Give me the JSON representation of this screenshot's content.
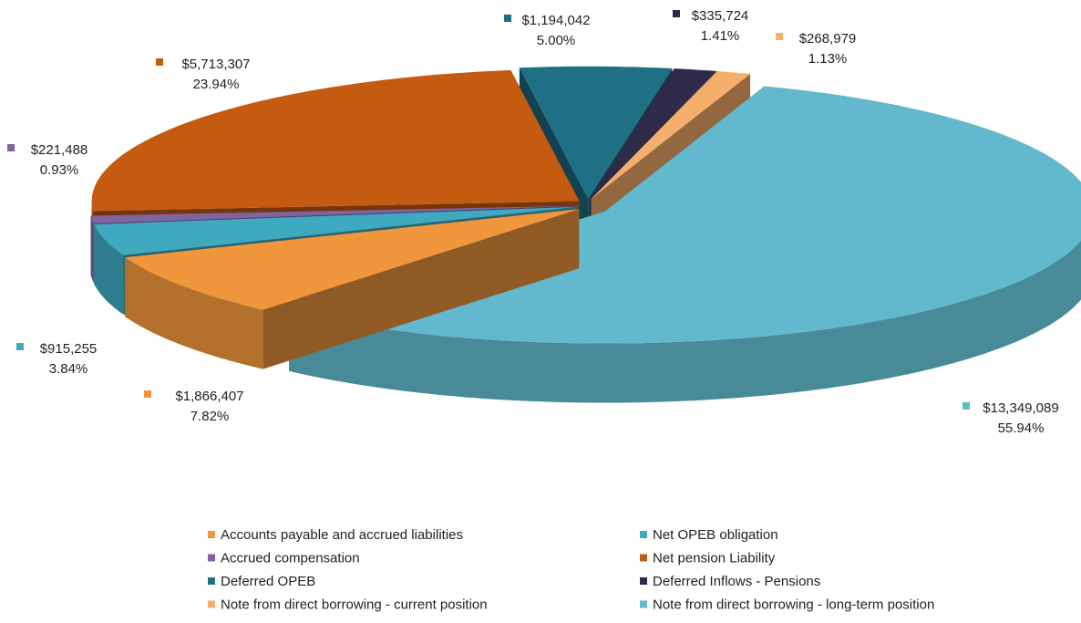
{
  "chart_data": {
    "type": "pie",
    "categories": [
      "Accounts payable and accrued liabilities",
      "Net OPEB obligation",
      "Accrued compensation",
      "Net pension Liability",
      "Deferred OPEB",
      "Deferred Inflows - Pensions",
      "Note from direct borrowing - current position",
      "Note from direct borrowing - long-term position"
    ],
    "values": [
      1866407,
      915255,
      221488,
      5713307,
      1194042,
      335724,
      268979,
      13349089
    ],
    "value_labels": [
      "$1,866,407",
      "$915,255",
      "$221,488",
      "$5,713,307",
      "$1,194,042",
      "$335,724",
      "$268,979",
      "$13,349,089"
    ],
    "percent_labels": [
      "7.82%",
      "3.84%",
      "0.93%",
      "23.94%",
      "5.00%",
      "1.41%",
      "1.13%",
      "55.94%"
    ],
    "colors": [
      "#f0973d",
      "#3fa9c0",
      "#8064a2",
      "#c55a11",
      "#1f6f85",
      "#2d2a4a",
      "#f5ae6b",
      "#62b8cc"
    ],
    "legend": "bottom"
  }
}
